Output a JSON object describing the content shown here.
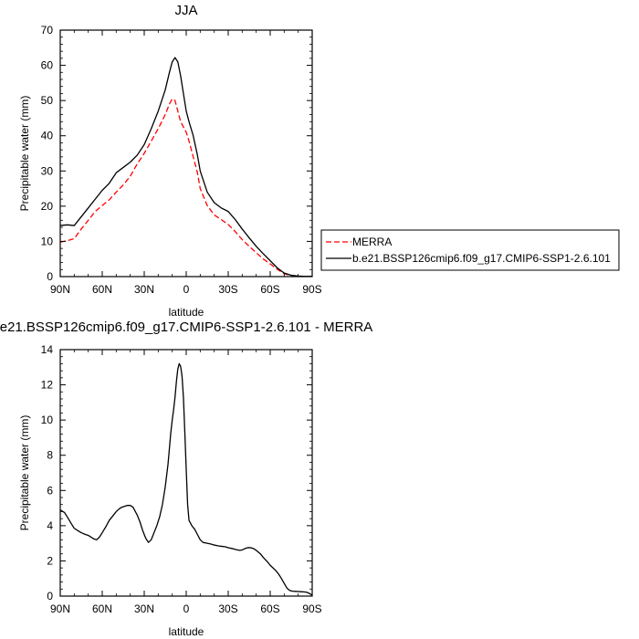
{
  "chart_data": [
    {
      "type": "line",
      "title": "JJA",
      "xlabel": "latitude",
      "ylabel": "Precipitable water (mm)",
      "xlim": [
        90,
        -90
      ],
      "ylim": [
        0,
        70
      ],
      "x_ticks": [
        90,
        60,
        30,
        0,
        -30,
        -60,
        -90
      ],
      "x_tick_labels": [
        "90N",
        "60N",
        "30N",
        "0",
        "30S",
        "60S",
        "90S"
      ],
      "y_ticks": [
        0,
        10,
        20,
        30,
        40,
        50,
        60,
        70
      ],
      "y_tick_labels": [
        "0",
        "10",
        "20",
        "30",
        "40",
        "50",
        "60",
        "70"
      ],
      "legend_placement": "right",
      "series": [
        {
          "name": "MERRA",
          "color": "#ff0000",
          "dash": "dashed",
          "x": [
            90,
            85,
            80,
            75,
            70,
            65,
            60,
            55,
            50,
            45,
            40,
            35,
            30,
            25,
            20,
            15,
            12,
            10,
            8,
            6,
            4,
            2,
            0,
            -2,
            -5,
            -8,
            -10,
            -15,
            -20,
            -25,
            -30,
            -35,
            -40,
            -45,
            -50,
            -55,
            -60,
            -65,
            -70,
            -75,
            -80,
            -85,
            -90
          ],
          "y": [
            9.8,
            10.2,
            10.8,
            13.5,
            16,
            18.5,
            20.2,
            21.8,
            24,
            26,
            28.5,
            32,
            35,
            38.5,
            42,
            46,
            49,
            50.5,
            50,
            47,
            44,
            42.5,
            41,
            38.5,
            34,
            29.5,
            25,
            20.2,
            17.5,
            16.2,
            14.8,
            12.8,
            10.5,
            8.6,
            6.8,
            5,
            3.6,
            2.1,
            0.8,
            0.3,
            0.1,
            0.05,
            0.05
          ]
        },
        {
          "name": "b.e21.BSSP126cmip6.f09_g17.CMIP6-SSP1-2.6.101",
          "color": "#000000",
          "dash": "solid",
          "x": [
            90,
            85,
            80,
            75,
            70,
            65,
            60,
            55,
            50,
            45,
            40,
            35,
            30,
            25,
            20,
            15,
            12,
            10,
            8,
            6,
            4,
            2,
            0,
            -2,
            -5,
            -8,
            -10,
            -15,
            -20,
            -25,
            -30,
            -35,
            -40,
            -45,
            -50,
            -55,
            -60,
            -65,
            -70,
            -75,
            -80,
            -85,
            -90
          ],
          "y": [
            14.5,
            14.7,
            14.5,
            17,
            19.5,
            22,
            24.5,
            26.5,
            29.5,
            31,
            32.5,
            34.5,
            37.5,
            42,
            47,
            53,
            58,
            61,
            62.2,
            61,
            57,
            52,
            47,
            44,
            40,
            34.5,
            30,
            24,
            21,
            19.5,
            18.5,
            16.2,
            13.5,
            11,
            8.6,
            6.5,
            4.5,
            2.5,
            1,
            0.4,
            0.15,
            0.05,
            0.05
          ]
        }
      ]
    },
    {
      "type": "line",
      "title": "e21.BSSP126cmip6.f09_g17.CMIP6-SSP1-2.6.101 - MERRA",
      "xlabel": "latitude",
      "ylabel": "Precipitable water (mm)",
      "xlim": [
        90,
        -90
      ],
      "ylim": [
        0,
        14
      ],
      "x_ticks": [
        90,
        60,
        30,
        0,
        -30,
        -60,
        -90
      ],
      "x_tick_labels": [
        "90N",
        "60N",
        "30N",
        "0",
        "30S",
        "60S",
        "90S"
      ],
      "y_ticks": [
        0,
        2,
        4,
        6,
        8,
        10,
        12,
        14
      ],
      "y_tick_labels": [
        "0",
        "2",
        "4",
        "6",
        "8",
        "10",
        "12",
        "14"
      ],
      "series": [
        {
          "color": "#000000",
          "dash": "solid",
          "x": [
            90,
            87,
            85,
            82,
            80,
            77,
            75,
            72,
            70,
            68,
            66,
            64,
            62,
            60,
            57,
            55,
            52,
            50,
            48,
            46,
            44,
            42,
            40,
            38,
            35,
            33,
            31,
            29,
            27,
            25,
            23,
            21,
            19,
            17,
            15,
            13,
            12,
            11,
            10,
            9,
            8,
            7,
            6,
            5,
            4,
            3,
            2,
            1,
            0,
            -1,
            -2,
            -4,
            -6,
            -8,
            -10,
            -12,
            -15,
            -18,
            -20,
            -23,
            -25,
            -28,
            -30,
            -33,
            -35,
            -38,
            -40,
            -42,
            -44,
            -46,
            -48,
            -50,
            -53,
            -55,
            -58,
            -60,
            -62,
            -64,
            -66,
            -68,
            -70,
            -72,
            -74,
            -76,
            -78,
            -80,
            -82,
            -84,
            -86,
            -88,
            -90
          ],
          "y": [
            4.9,
            4.75,
            4.5,
            4.1,
            3.85,
            3.7,
            3.6,
            3.5,
            3.45,
            3.35,
            3.25,
            3.2,
            3.35,
            3.6,
            4.0,
            4.3,
            4.6,
            4.8,
            4.95,
            5.05,
            5.1,
            5.15,
            5.15,
            5.05,
            4.6,
            4.2,
            3.7,
            3.3,
            3.05,
            3.2,
            3.6,
            4.0,
            4.5,
            5.2,
            6.2,
            7.5,
            8.4,
            9.3,
            10.0,
            10.6,
            11.3,
            12.2,
            12.9,
            13.2,
            13.05,
            12.5,
            11.3,
            9.3,
            7.2,
            5.2,
            4.3,
            4.0,
            3.8,
            3.5,
            3.2,
            3.05,
            3.0,
            2.95,
            2.9,
            2.85,
            2.83,
            2.8,
            2.75,
            2.7,
            2.65,
            2.6,
            2.62,
            2.7,
            2.75,
            2.75,
            2.7,
            2.6,
            2.4,
            2.2,
            1.95,
            1.75,
            1.6,
            1.45,
            1.25,
            1.0,
            0.72,
            0.45,
            0.32,
            0.28,
            0.27,
            0.26,
            0.25,
            0.24,
            0.22,
            0.15,
            0.05
          ]
        }
      ]
    }
  ]
}
